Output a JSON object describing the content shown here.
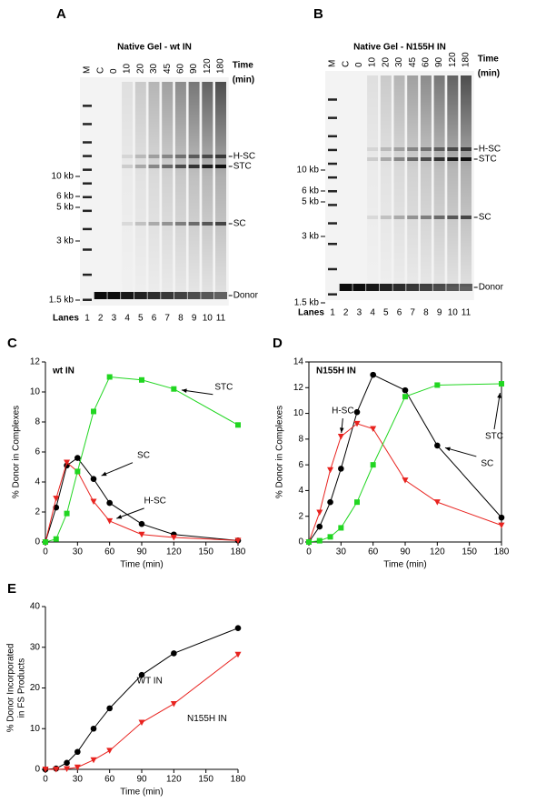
{
  "gels": [
    {
      "panel": "A",
      "title": "Native Gel - wt IN",
      "lanes_top": [
        "M",
        "C",
        "0",
        "10",
        "20",
        "30",
        "45",
        "60",
        "90",
        "120",
        "180"
      ],
      "time_label": [
        "Time",
        "(min)"
      ],
      "bands": [
        "H-SC",
        "STC",
        "SC",
        "Donor"
      ],
      "sizes": [
        "10 kb",
        "6 kb",
        "5 kb",
        "3 kb",
        "1.5 kb"
      ],
      "lanes_label": "Lanes",
      "lane_numbers": [
        "1",
        "2",
        "3",
        "4",
        "5",
        "6",
        "7",
        "8",
        "9",
        "10",
        "11"
      ]
    },
    {
      "panel": "B",
      "title": "Native Gel - N155H IN",
      "lanes_top": [
        "M",
        "C",
        "0",
        "10",
        "20",
        "30",
        "45",
        "60",
        "90",
        "120",
        "180"
      ],
      "time_label": [
        "Time",
        "(min)"
      ],
      "bands": [
        "H-SC",
        "STC",
        "SC",
        "Donor"
      ],
      "sizes": [
        "10 kb",
        "6 kb",
        "5 kb",
        "3 kb",
        "1.5 kb"
      ],
      "lanes_label": "Lanes",
      "lane_numbers": [
        "1",
        "2",
        "3",
        "4",
        "5",
        "6",
        "7",
        "8",
        "9",
        "10",
        "11"
      ]
    }
  ],
  "chart_data": [
    {
      "type": "line",
      "panel": "C",
      "label": "wt IN",
      "xlabel": "Time (min)",
      "ylabel": [
        "% Donor in Complexes"
      ],
      "x": [
        0,
        10,
        20,
        30,
        45,
        60,
        90,
        120,
        180
      ],
      "xlim": [
        0,
        180
      ],
      "xticks": [
        0,
        30,
        60,
        90,
        120,
        150,
        180
      ],
      "ylim": [
        0,
        12
      ],
      "yticks": [
        0,
        2,
        4,
        6,
        8,
        10,
        12
      ],
      "box": false,
      "series": [
        {
          "name": "SC",
          "color": "#000000",
          "marker": "circle",
          "values": [
            0,
            2.3,
            5.1,
            5.6,
            4.2,
            2.6,
            1.2,
            0.5,
            0.1
          ]
        },
        {
          "name": "H-SC",
          "color": "#e8231f",
          "marker": "triangle-down",
          "values": [
            0,
            2.9,
            5.3,
            4.7,
            2.7,
            1.4,
            0.5,
            0.3,
            0.1
          ]
        },
        {
          "name": "STC",
          "color": "#21d621",
          "marker": "square",
          "values": [
            0,
            0.2,
            1.9,
            4.7,
            8.7,
            11.0,
            10.8,
            10.2,
            7.8
          ]
        }
      ]
    },
    {
      "type": "line",
      "panel": "D",
      "label": "N155H IN",
      "xlabel": "Time (min)",
      "ylabel": [
        "% Donor in Complexes"
      ],
      "x": [
        0,
        10,
        20,
        30,
        45,
        60,
        90,
        120,
        180
      ],
      "xlim": [
        0,
        180
      ],
      "xticks": [
        0,
        30,
        60,
        90,
        120,
        150,
        180
      ],
      "ylim": [
        0,
        14
      ],
      "yticks": [
        0,
        2,
        4,
        6,
        8,
        10,
        12,
        14
      ],
      "box": true,
      "series": [
        {
          "name": "SC",
          "color": "#000000",
          "marker": "circle",
          "values": [
            0,
            1.2,
            3.1,
            5.7,
            10.1,
            13.0,
            11.8,
            7.5,
            1.9
          ]
        },
        {
          "name": "H-SC",
          "color": "#e8231f",
          "marker": "triangle-down",
          "values": [
            0,
            2.3,
            5.6,
            8.2,
            9.2,
            8.8,
            4.8,
            3.1,
            1.3
          ]
        },
        {
          "name": "STC",
          "color": "#21d621",
          "marker": "square",
          "values": [
            0,
            0.1,
            0.4,
            1.1,
            3.1,
            6.0,
            11.3,
            12.2,
            12.3
          ]
        }
      ]
    },
    {
      "type": "line",
      "panel": "E",
      "xlabel": "Time (min)",
      "ylabel": [
        "% Donor Incorporated",
        "in FS Products"
      ],
      "x": [
        0,
        10,
        20,
        30,
        45,
        60,
        90,
        120,
        180
      ],
      "xlim": [
        0,
        180
      ],
      "xticks": [
        0,
        30,
        60,
        90,
        120,
        150,
        180
      ],
      "ylim": [
        0,
        40
      ],
      "yticks": [
        0,
        10,
        20,
        30,
        40
      ],
      "box": false,
      "series": [
        {
          "name": "WT IN",
          "color": "#000000",
          "marker": "circle",
          "values": [
            0,
            0.2,
            1.6,
            4.3,
            10.0,
            15.0,
            23.2,
            28.5,
            34.7
          ]
        },
        {
          "name": "N155H IN",
          "color": "#e8231f",
          "marker": "triangle-down",
          "values": [
            0,
            0,
            0.1,
            0.5,
            2.3,
            4.6,
            11.5,
            16.1,
            28.2
          ]
        }
      ]
    }
  ]
}
